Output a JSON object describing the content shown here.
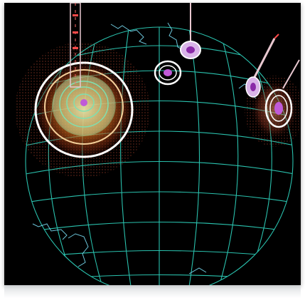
{
  "scene": {
    "subject": "wireframe-globe-visualization",
    "colors": {
      "background": "#000000",
      "grid": "#2fd6c0",
      "coastline": "#7fe8ff",
      "hot_glow": "#e06a1a",
      "ring": "#ffffff",
      "core": "#c05ad8",
      "spike": "#e8c8d0"
    },
    "icons": [
      "globe-wireframe",
      "coastline-outline",
      "data-spike-marker",
      "concentric-ring-marker"
    ]
  }
}
